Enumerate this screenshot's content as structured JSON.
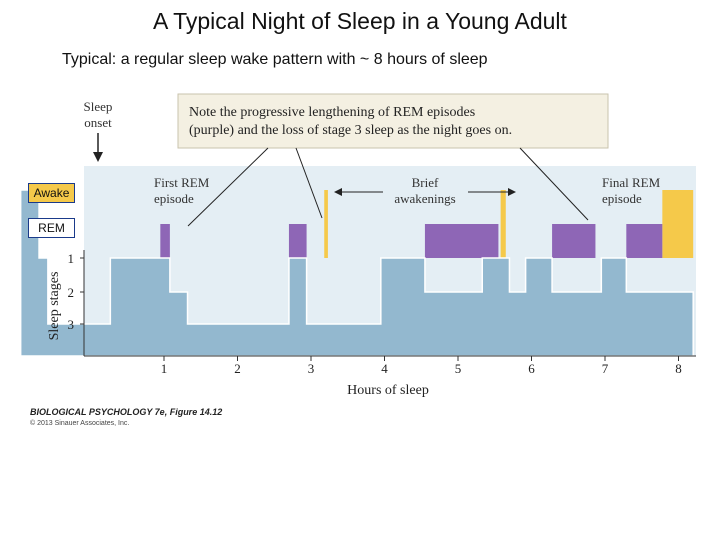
{
  "header": {
    "title": "A Typical Night of Sleep in a Young Adult",
    "subtitle": "Typical:  a regular sleep wake pattern with ~ 8 hours of sleep"
  },
  "legend_labels": {
    "awake": "Awake",
    "rem": "REM"
  },
  "onset_label": {
    "line1": "Sleep",
    "line2": "onset"
  },
  "note": {
    "line1": "Note the progressive lengthening of REM episodes",
    "line2": "(purple) and the loss of stage 3 sleep as the night goes on."
  },
  "annotations": {
    "first_rem": {
      "line1": "First REM",
      "line2": "episode"
    },
    "brief": {
      "line1": "Brief",
      "line2": "awakenings"
    },
    "final_rem": {
      "line1": "Final REM",
      "line2": "episode"
    }
  },
  "credit": {
    "title": "BIOLOGICAL PSYCHOLOGY 7e, Figure 14.12",
    "copyright": "© 2013 Sinauer Associates, Inc."
  },
  "colors": {
    "awake": "#f5c94a",
    "rem": "#8e66b6",
    "sleep_fill": "#93b8cf",
    "background_panel": "#e4eef4",
    "note_box": "#f4f0e2"
  },
  "chart_data": {
    "type": "area",
    "title": "",
    "xlabel": "Hours of sleep",
    "ylabel": "Sleep stages",
    "xlim": [
      0,
      8.2
    ],
    "x_ticks": [
      "1",
      "2",
      "3",
      "4",
      "5",
      "6",
      "7",
      "8"
    ],
    "y_ticks": [
      "1",
      "2",
      "3"
    ],
    "hypnogram_x": [
      -0.95,
      -0.7,
      -0.7,
      -0.58,
      -0.58,
      0.27,
      0.27,
      1.08,
      1.08,
      1.32,
      1.32,
      2.7,
      2.7,
      2.94,
      2.94,
      3.95,
      3.95,
      4.55,
      4.55,
      5.33,
      5.33,
      5.7,
      5.7,
      5.92,
      5.92,
      6.28,
      6.28,
      6.95,
      6.95,
      7.29,
      7.29,
      8.2
    ],
    "hypnogram_stage": [
      "wake",
      "wake",
      "1",
      "1",
      "3",
      "3",
      "1",
      "1",
      "2",
      "2",
      "3",
      "3",
      "1",
      "1",
      "3",
      "3",
      "1",
      "1",
      "2",
      "2",
      "1",
      "1",
      "2",
      "2",
      "1",
      "1",
      "2",
      "2",
      "1",
      "1",
      "2",
      "2"
    ],
    "rem_episodes": [
      [
        0.95,
        1.08
      ],
      [
        2.7,
        2.94
      ],
      [
        4.55,
        5.55
      ],
      [
        6.28,
        6.87
      ],
      [
        7.29,
        7.78
      ]
    ],
    "awake_periods": [
      [
        -0.95,
        -0.7
      ],
      [
        3.18,
        3.23
      ],
      [
        5.58,
        5.65
      ],
      [
        7.78,
        8.2
      ]
    ]
  }
}
